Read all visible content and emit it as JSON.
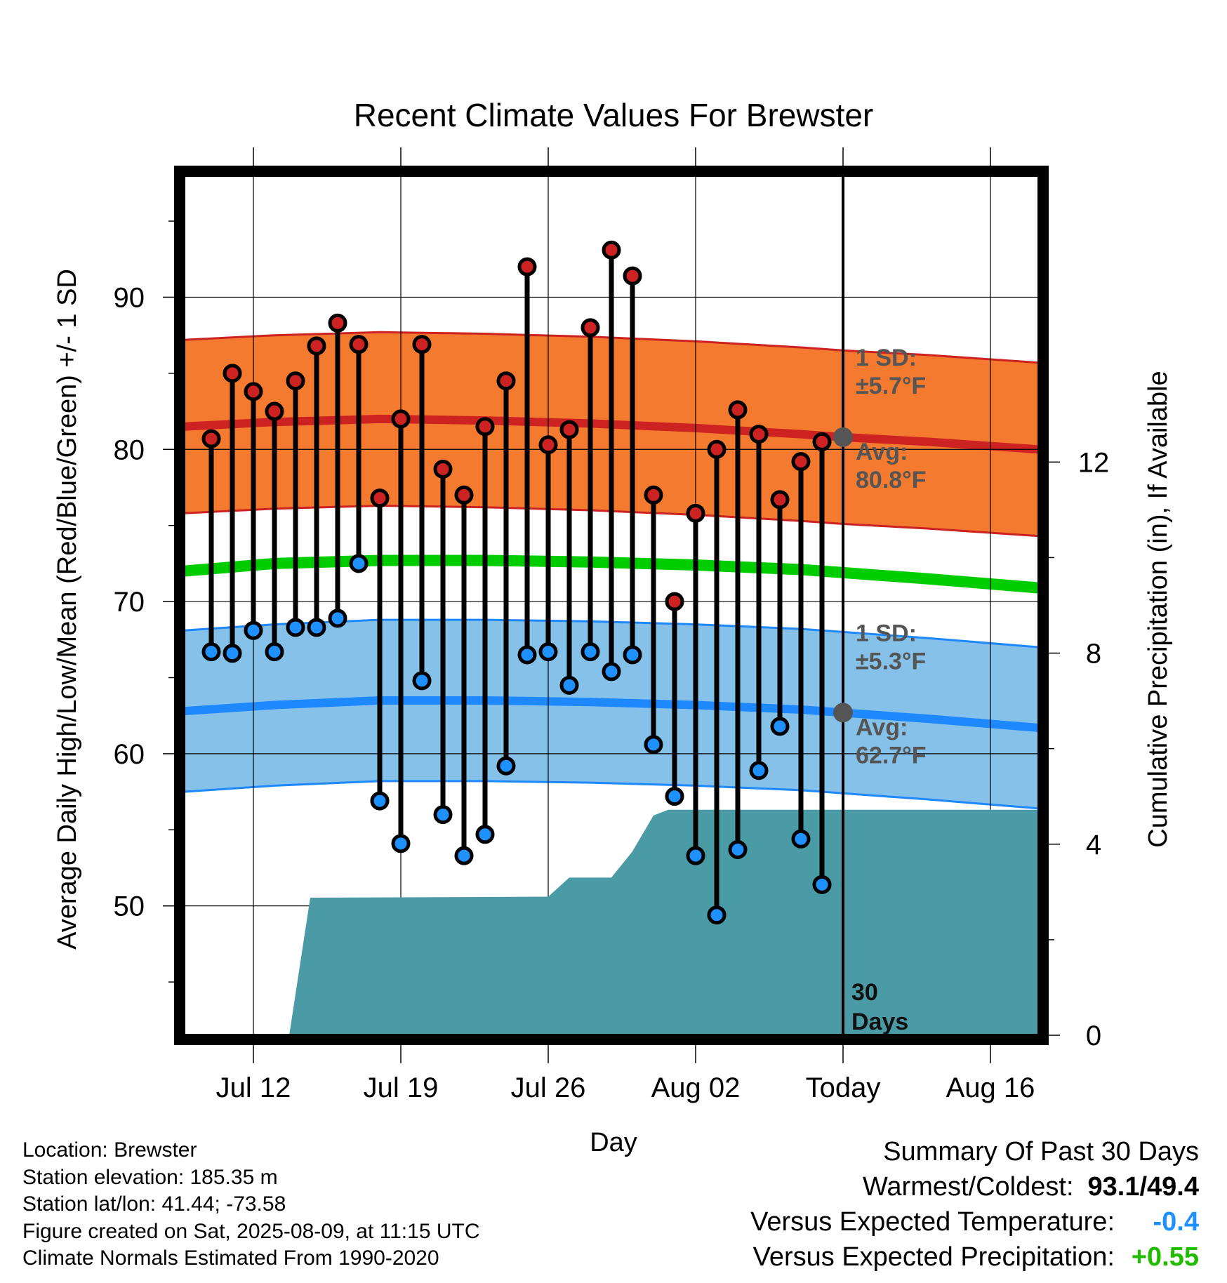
{
  "chart_data": {
    "type": "line",
    "title": "Recent Climate Values For Brewster",
    "xlabel": "Day",
    "ylabel": "Average Daily High/Low/Mean (Red/Blue/Green) +/- 1 SD",
    "y2label": "Cumulative Precipitation (in), If Available",
    "xlim_days": [
      -31.3,
      9.3
    ],
    "ylim": [
      41.5,
      98.0
    ],
    "y2lim": [
      0,
      18
    ],
    "yticks": [
      50,
      60,
      70,
      80,
      90
    ],
    "y2ticks": [
      0,
      4,
      8,
      12
    ],
    "xtick_labels": [
      {
        "day": -28,
        "label": "Jul 12"
      },
      {
        "day": -21,
        "label": "Jul 19"
      },
      {
        "day": -14,
        "label": "Jul 26"
      },
      {
        "day": -7,
        "label": "Aug 02"
      },
      {
        "day": 0,
        "label": "Today"
      },
      {
        "day": 7,
        "label": "Aug 16"
      }
    ],
    "grid": true,
    "daily_high": [
      80.7,
      85.0,
      83.8,
      82.5,
      84.5,
      86.8,
      88.3,
      86.9,
      76.8,
      82.0,
      86.9,
      78.7,
      77.0,
      81.5,
      84.5,
      92.0,
      80.3,
      81.3,
      88.0,
      93.1,
      91.4,
      77.0,
      70.0,
      75.8,
      80.0,
      82.6,
      81.0,
      76.7,
      79.2,
      80.5
    ],
    "daily_low": [
      66.7,
      66.6,
      68.1,
      66.7,
      68.3,
      68.3,
      68.9,
      72.5,
      56.9,
      54.1,
      64.8,
      56.0,
      53.3,
      54.7,
      59.2,
      66.5,
      66.7,
      64.5,
      66.7,
      65.4,
      66.5,
      60.6,
      57.2,
      53.3,
      49.4,
      53.7,
      58.9,
      61.8,
      54.4,
      51.4
    ],
    "daily_days_start": -30,
    "normal_days": [
      -31.3,
      -27,
      -22,
      -17,
      -12,
      -7,
      -2,
      0,
      4,
      9.3
    ],
    "normal_high": [
      81.5,
      81.8,
      82.0,
      81.9,
      81.7,
      81.4,
      81.0,
      80.8,
      80.5,
      80.0
    ],
    "normal_mean": [
      72.0,
      72.5,
      72.7,
      72.7,
      72.6,
      72.4,
      72.1,
      71.9,
      71.5,
      70.9
    ],
    "normal_low": [
      62.8,
      63.2,
      63.5,
      63.5,
      63.4,
      63.2,
      62.9,
      62.7,
      62.3,
      61.7
    ],
    "high_sd": 5.7,
    "low_sd": 5.3,
    "precip_days": [
      -26.3,
      -25.3,
      -14,
      -13,
      -11,
      -10,
      -9,
      -8.3,
      -7.5,
      9.3
    ],
    "precip_cum": [
      0.0,
      2.88,
      2.9,
      3.3,
      3.3,
      3.85,
      4.6,
      4.72,
      4.72,
      4.72
    ],
    "today_marker": {
      "high_avg": 80.8,
      "low_avg": 62.7,
      "high_sd_label": "1 SD:",
      "high_sd_value": "±5.7°F",
      "high_avg_label": "Avg:",
      "high_avg_value": "80.8°F",
      "low_sd_label": "1 SD:",
      "low_sd_value": "±5.3°F",
      "low_avg_label": "Avg:",
      "low_avg_value": "62.7°F",
      "period_num": "30",
      "period_unit": "Days"
    },
    "colors": {
      "high_band": "#f47a2f",
      "high_line": "#cc2222",
      "low_band": "#85c1e9",
      "low_line": "#1e88ff",
      "mean_line": "#00cc00",
      "precip": "#4a9ba5",
      "high_dot": "#cc2222",
      "low_dot": "#1e90ff",
      "marker": "#555555"
    }
  },
  "info": {
    "location": "Location: Brewster",
    "elevation": "Station elevation: 185.35 m",
    "latlon": "Station lat/lon: 41.44; -73.58",
    "created": "Figure created on Sat, 2025-08-09, at 11:15 UTC",
    "normals": "Climate Normals Estimated From 1990-2020"
  },
  "summary": {
    "title": "Summary Of Past 30 Days",
    "warmest_label": "Warmest/Coldest:",
    "warmest_value": "93.1/49.4",
    "temp_label": "Versus Expected Temperature:",
    "temp_value": "-0.4",
    "precip_label": "Versus Expected Precipitation:",
    "precip_value": "+0.55"
  }
}
